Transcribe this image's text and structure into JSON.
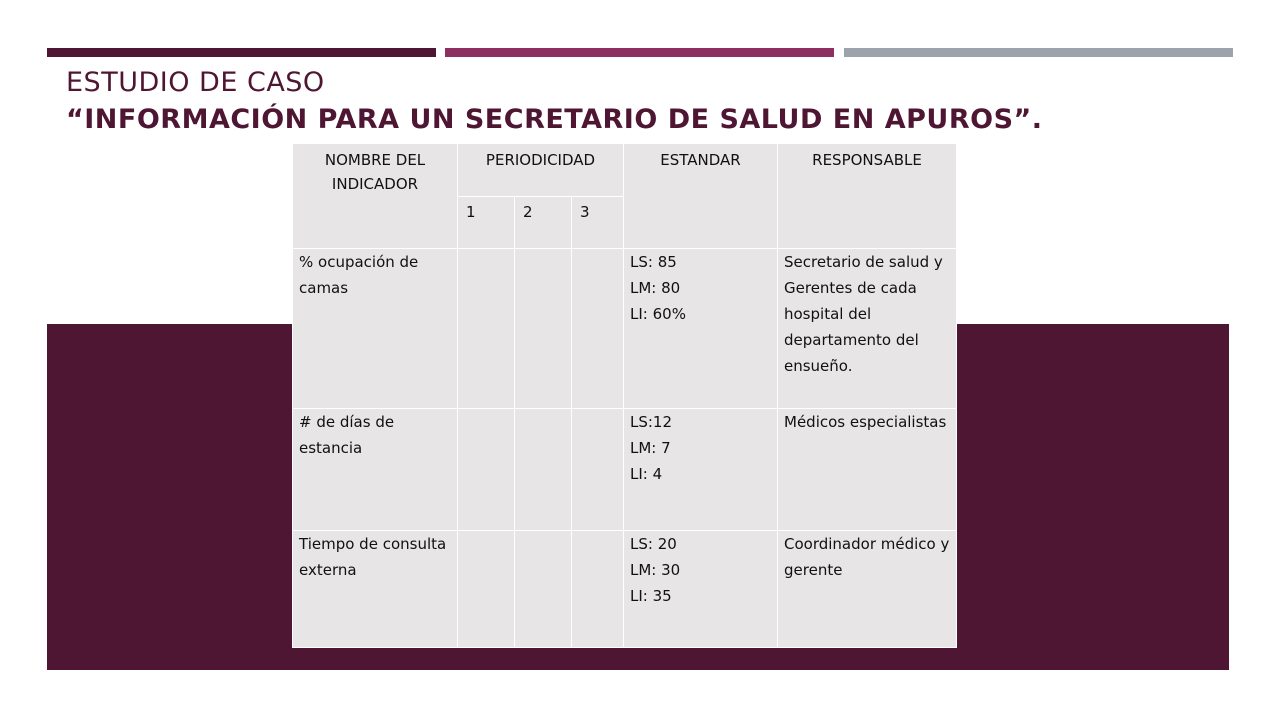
{
  "slide": {
    "title_line1": "ESTUDIO DE CASO",
    "title_line2": "“INFORMACIÓN PARA UN SECRETARIO DE SALUD EN APUROS”.",
    "colors": {
      "accent_dark": "#4e1632",
      "accent_mid": "#8d2f61",
      "accent_gray": "#9da3aa",
      "table_bg": "#e7e5e6"
    }
  },
  "table": {
    "headers": {
      "indicador": "NOMBRE DEL INDICADOR",
      "periodicidad": "PERIODICIDAD",
      "estandar": "ESTANDAR",
      "responsable": "RESPONSABLE",
      "periods": [
        "1",
        "2",
        "3"
      ]
    },
    "rows": [
      {
        "indicador": "% ocupación de camas",
        "p1": "",
        "p2": "",
        "p3": "",
        "estandar": "LS: 85\nLM: 80\nLI: 60%",
        "responsable": "Secretario de salud y Gerentes de cada hospital del departamento del ensueño."
      },
      {
        "indicador": "# de días de estancia",
        "p1": "",
        "p2": "",
        "p3": "",
        "estandar": "LS:12\nLM: 7\nLI: 4",
        "responsable": "Médicos especialistas"
      },
      {
        "indicador": "Tiempo de consulta externa",
        "p1": "",
        "p2": "",
        "p3": "",
        "estandar": "LS: 20\nLM: 30\nLI: 35",
        "responsable": "Coordinador médico y gerente"
      }
    ]
  }
}
